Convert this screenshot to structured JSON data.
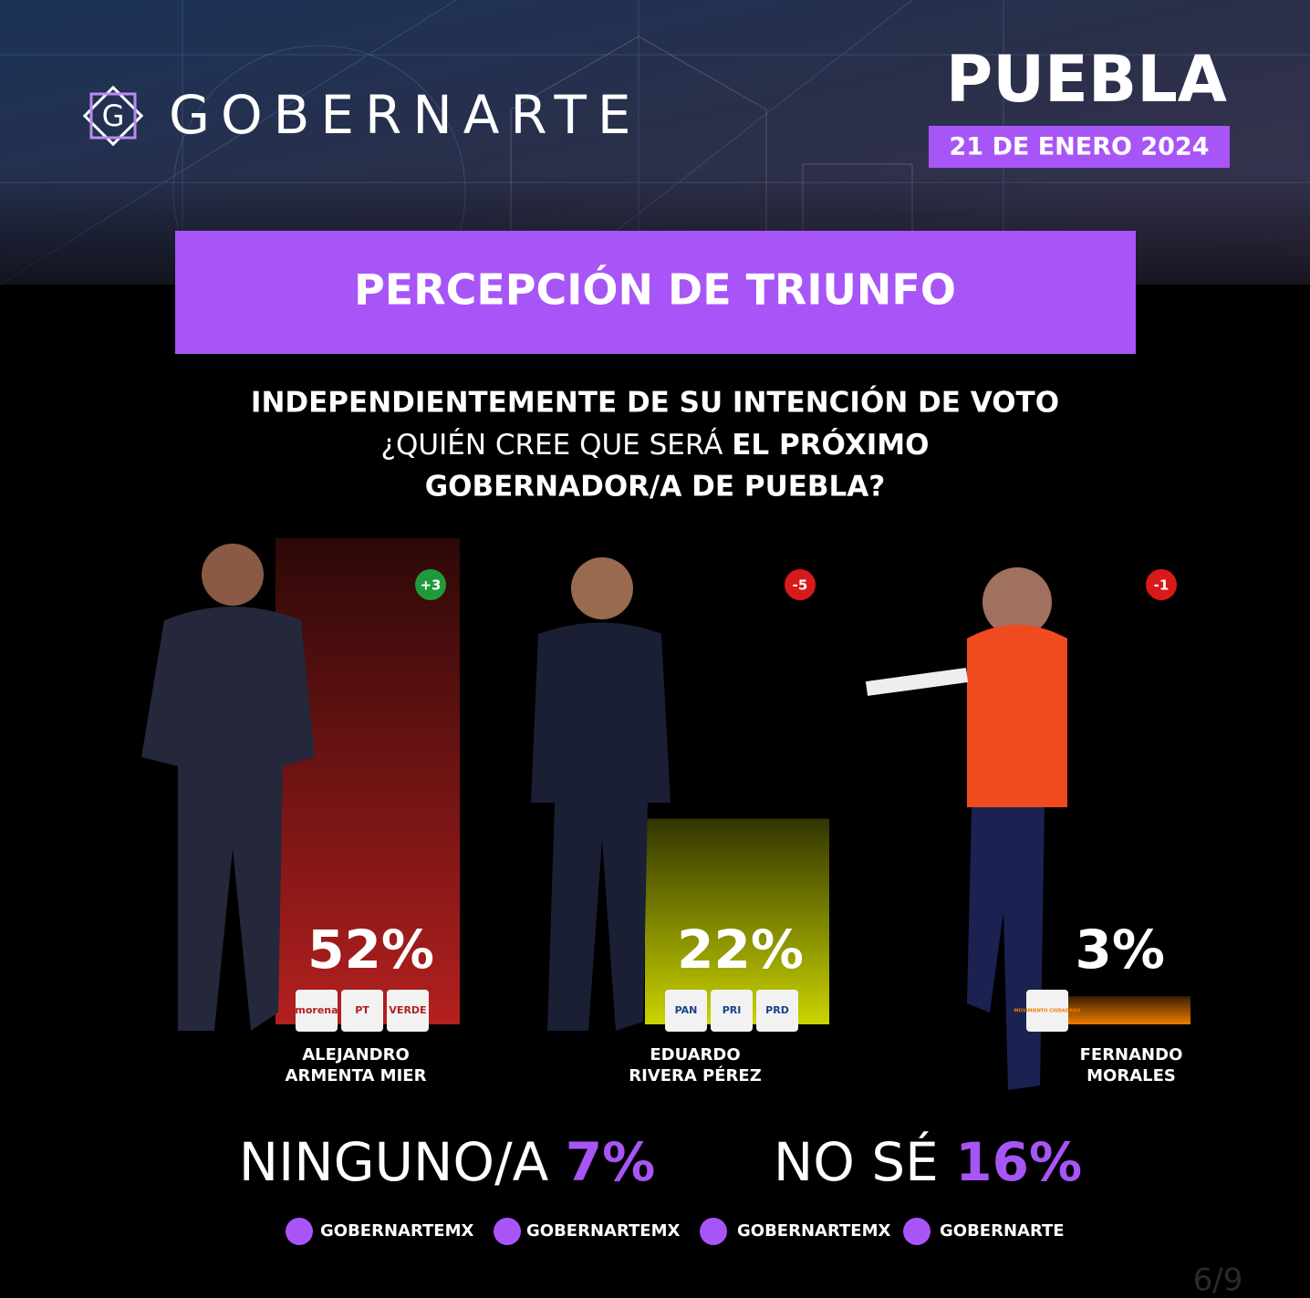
{
  "brand": "GOBERNARTE",
  "logo_letter": "G",
  "state": "PUEBLA",
  "date": "21 DE ENERO 2024",
  "chart_data": {
    "type": "bar",
    "title": "PERCEPCIÓN DE TRIUNFO",
    "subtitle": {
      "line1": "INDEPENDIENTEMENTE DE SU INTENCIÓN DE VOTO",
      "line2a": "¿QUIÉN CREE QUE SERÁ",
      "line2b": "EL PRÓXIMO",
      "line3": "GOBERNADOR/A DE PUEBLA?"
    },
    "categories": [
      [
        "ALEJANDRO",
        "ARMENTA MIER"
      ],
      [
        "EDUARDO",
        "RIVERA PÉREZ"
      ],
      [
        "FERNANDO",
        "MORALES"
      ]
    ],
    "values": [
      52,
      22,
      3
    ],
    "value_labels": [
      "52%",
      "22%",
      "3%"
    ],
    "changes": [
      3,
      -5,
      -1
    ],
    "change_labels": [
      "+3",
      "-5",
      "-1"
    ],
    "colors": [
      "#b3201f",
      "#c9d400",
      "#f07c00"
    ],
    "parties": [
      [
        "morena",
        "PT",
        "VERDE"
      ],
      [
        "PAN",
        "PRI",
        "PRD"
      ],
      [
        "MOVIMIENTO CIUDADANO"
      ]
    ],
    "ylim": [
      0,
      52
    ]
  },
  "others": [
    {
      "label": "NINGUNO/A",
      "value": "7%"
    },
    {
      "label": "NO SÉ",
      "value": "16%"
    }
  ],
  "social": [
    "GOBERNARTEMX",
    "GOBERNARTEMX",
    "GOBERNARTEMX",
    "GOBERNARTE"
  ],
  "page": "6/9"
}
